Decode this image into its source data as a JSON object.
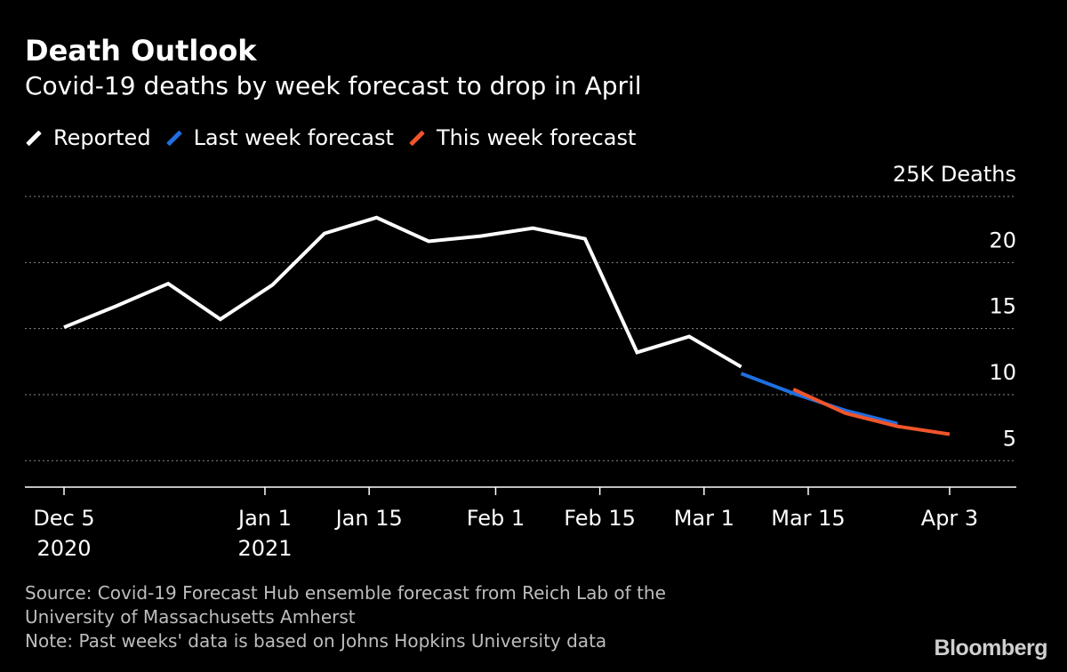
{
  "title": "Death Outlook",
  "subtitle": "Covid-19 deaths by week forecast to drop in April",
  "legend": [
    {
      "label": "Reported",
      "color": "#ffffff"
    },
    {
      "label": "Last week forecast",
      "color": "#1f6fe0"
    },
    {
      "label": "This week forecast",
      "color": "#f0552b"
    }
  ],
  "footer": {
    "source_line1": "Source: Covid-19 Forecast Hub ensemble forecast from Reich Lab of the",
    "source_line2": "University of Massachusetts Amherst",
    "note": "Note: Past weeks' data is based on Johns Hopkins University data"
  },
  "logo": "Bloomberg",
  "chart_data": {
    "type": "line",
    "ylabel": "Deaths",
    "ylim": [
      3,
      25
    ],
    "yticks": [
      {
        "value": 25,
        "label": "25K Deaths"
      },
      {
        "value": 20,
        "label": "20"
      },
      {
        "value": 15,
        "label": "15"
      },
      {
        "value": 10,
        "label": "10"
      },
      {
        "value": 5,
        "label": "5"
      }
    ],
    "grid": true,
    "xlim": [
      "2020-12-05",
      "2021-04-03"
    ],
    "xticks": [
      {
        "date": "2020-12-05",
        "label": "Dec 5",
        "sublabel": "2020"
      },
      {
        "date": "2021-01-01",
        "label": "Jan 1",
        "sublabel": "2021"
      },
      {
        "date": "2021-01-15",
        "label": "Jan 15",
        "sublabel": ""
      },
      {
        "date": "2021-02-01",
        "label": "Feb 1",
        "sublabel": ""
      },
      {
        "date": "2021-02-15",
        "label": "Feb 15",
        "sublabel": ""
      },
      {
        "date": "2021-03-01",
        "label": "Mar 1",
        "sublabel": ""
      },
      {
        "date": "2021-03-15",
        "label": "Mar 15",
        "sublabel": ""
      },
      {
        "date": "2021-04-03",
        "label": "Apr 3",
        "sublabel": ""
      }
    ],
    "series": [
      {
        "name": "Reported",
        "color": "#ffffff",
        "points": [
          [
            "2020-12-05",
            15.1
          ],
          [
            "2020-12-12",
            16.7
          ],
          [
            "2020-12-19",
            18.4
          ],
          [
            "2020-12-26",
            15.7
          ],
          [
            "2021-01-02",
            18.3
          ],
          [
            "2021-01-09",
            22.2
          ],
          [
            "2021-01-16",
            23.4
          ],
          [
            "2021-01-23",
            21.6
          ],
          [
            "2021-01-30",
            22.0
          ],
          [
            "2021-02-06",
            22.6
          ],
          [
            "2021-02-13",
            21.8
          ],
          [
            "2021-02-20",
            13.2
          ],
          [
            "2021-02-27",
            14.4
          ],
          [
            "2021-03-06",
            12.1
          ]
        ]
      },
      {
        "name": "Last week forecast",
        "color": "#1f6fe0",
        "points": [
          [
            "2021-03-06",
            11.6
          ],
          [
            "2021-03-13",
            10.1
          ],
          [
            "2021-03-20",
            8.8
          ],
          [
            "2021-03-27",
            7.8
          ]
        ]
      },
      {
        "name": "This week forecast",
        "color": "#f0552b",
        "points": [
          [
            "2021-03-13",
            10.4
          ],
          [
            "2021-03-20",
            8.6
          ],
          [
            "2021-03-27",
            7.6
          ],
          [
            "2021-04-03",
            7.0
          ]
        ]
      }
    ]
  }
}
